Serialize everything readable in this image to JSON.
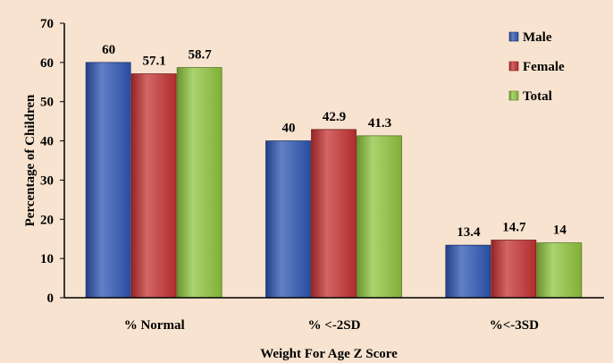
{
  "chart_data": {
    "type": "bar",
    "xlabel": "Weight For Age Z Score",
    "ylabel": "Percentage of Children",
    "ylim": [
      0,
      70
    ],
    "yticks": [
      0,
      10,
      20,
      30,
      40,
      50,
      60,
      70
    ],
    "categories": [
      "% Normal",
      "% <-2SD",
      "%<-3SD"
    ],
    "series": [
      {
        "name": "Male",
        "values": [
          60,
          40,
          13.4
        ],
        "value_labels": [
          "60",
          "40",
          "13.4"
        ],
        "color": "#2e55b3"
      },
      {
        "name": "Female",
        "values": [
          57.1,
          42.9,
          14.7
        ],
        "value_labels": [
          "57.1",
          "42.9",
          "14.7"
        ],
        "color": "#c43131"
      },
      {
        "name": "Total",
        "values": [
          58.7,
          41.3,
          14
        ],
        "value_labels": [
          "58.7",
          "41.3",
          "14"
        ],
        "color": "#8fc43e"
      }
    ],
    "legend_position": "top-right",
    "grid": false,
    "background_color": "#f7e3cf"
  }
}
